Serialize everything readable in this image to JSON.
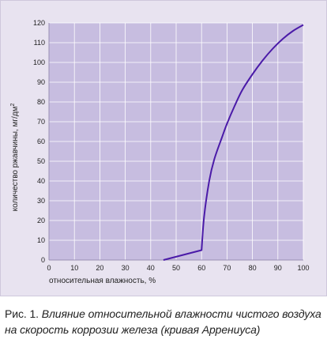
{
  "chart_data": {
    "type": "line",
    "xlabel": "относительная влажность, %",
    "ylabel_main": "количество ржавчины, мг/дм",
    "ylabel_sup": "2",
    "xlim": [
      0,
      100
    ],
    "ylim": [
      0,
      120
    ],
    "x_ticks": [
      0,
      10,
      20,
      30,
      40,
      50,
      60,
      70,
      80,
      90,
      100
    ],
    "y_ticks": [
      0,
      10,
      20,
      30,
      40,
      50,
      60,
      70,
      80,
      90,
      100,
      110,
      120
    ],
    "grid": true,
    "series": [
      {
        "x": [
          45,
          60,
          61,
          63,
          65,
          68,
          70,
          73,
          76,
          80,
          84,
          88,
          92,
          96,
          100
        ],
        "y": [
          0,
          5,
          22,
          40,
          51,
          62,
          69,
          78,
          86,
          94,
          101,
          107,
          112,
          116,
          119
        ],
        "color": "#4a1aa8"
      }
    ],
    "colors": {
      "plot_bg": "#c7bde0",
      "grid": "#ffffff",
      "panel_bg": "#e8e3f0",
      "axis_text": "#222222"
    }
  },
  "caption": {
    "prefix": "Рис. 1.",
    "text": "Влияние относительной влажности чистого воздуха на скорость коррозии железа (кривая Аррениуса)"
  }
}
